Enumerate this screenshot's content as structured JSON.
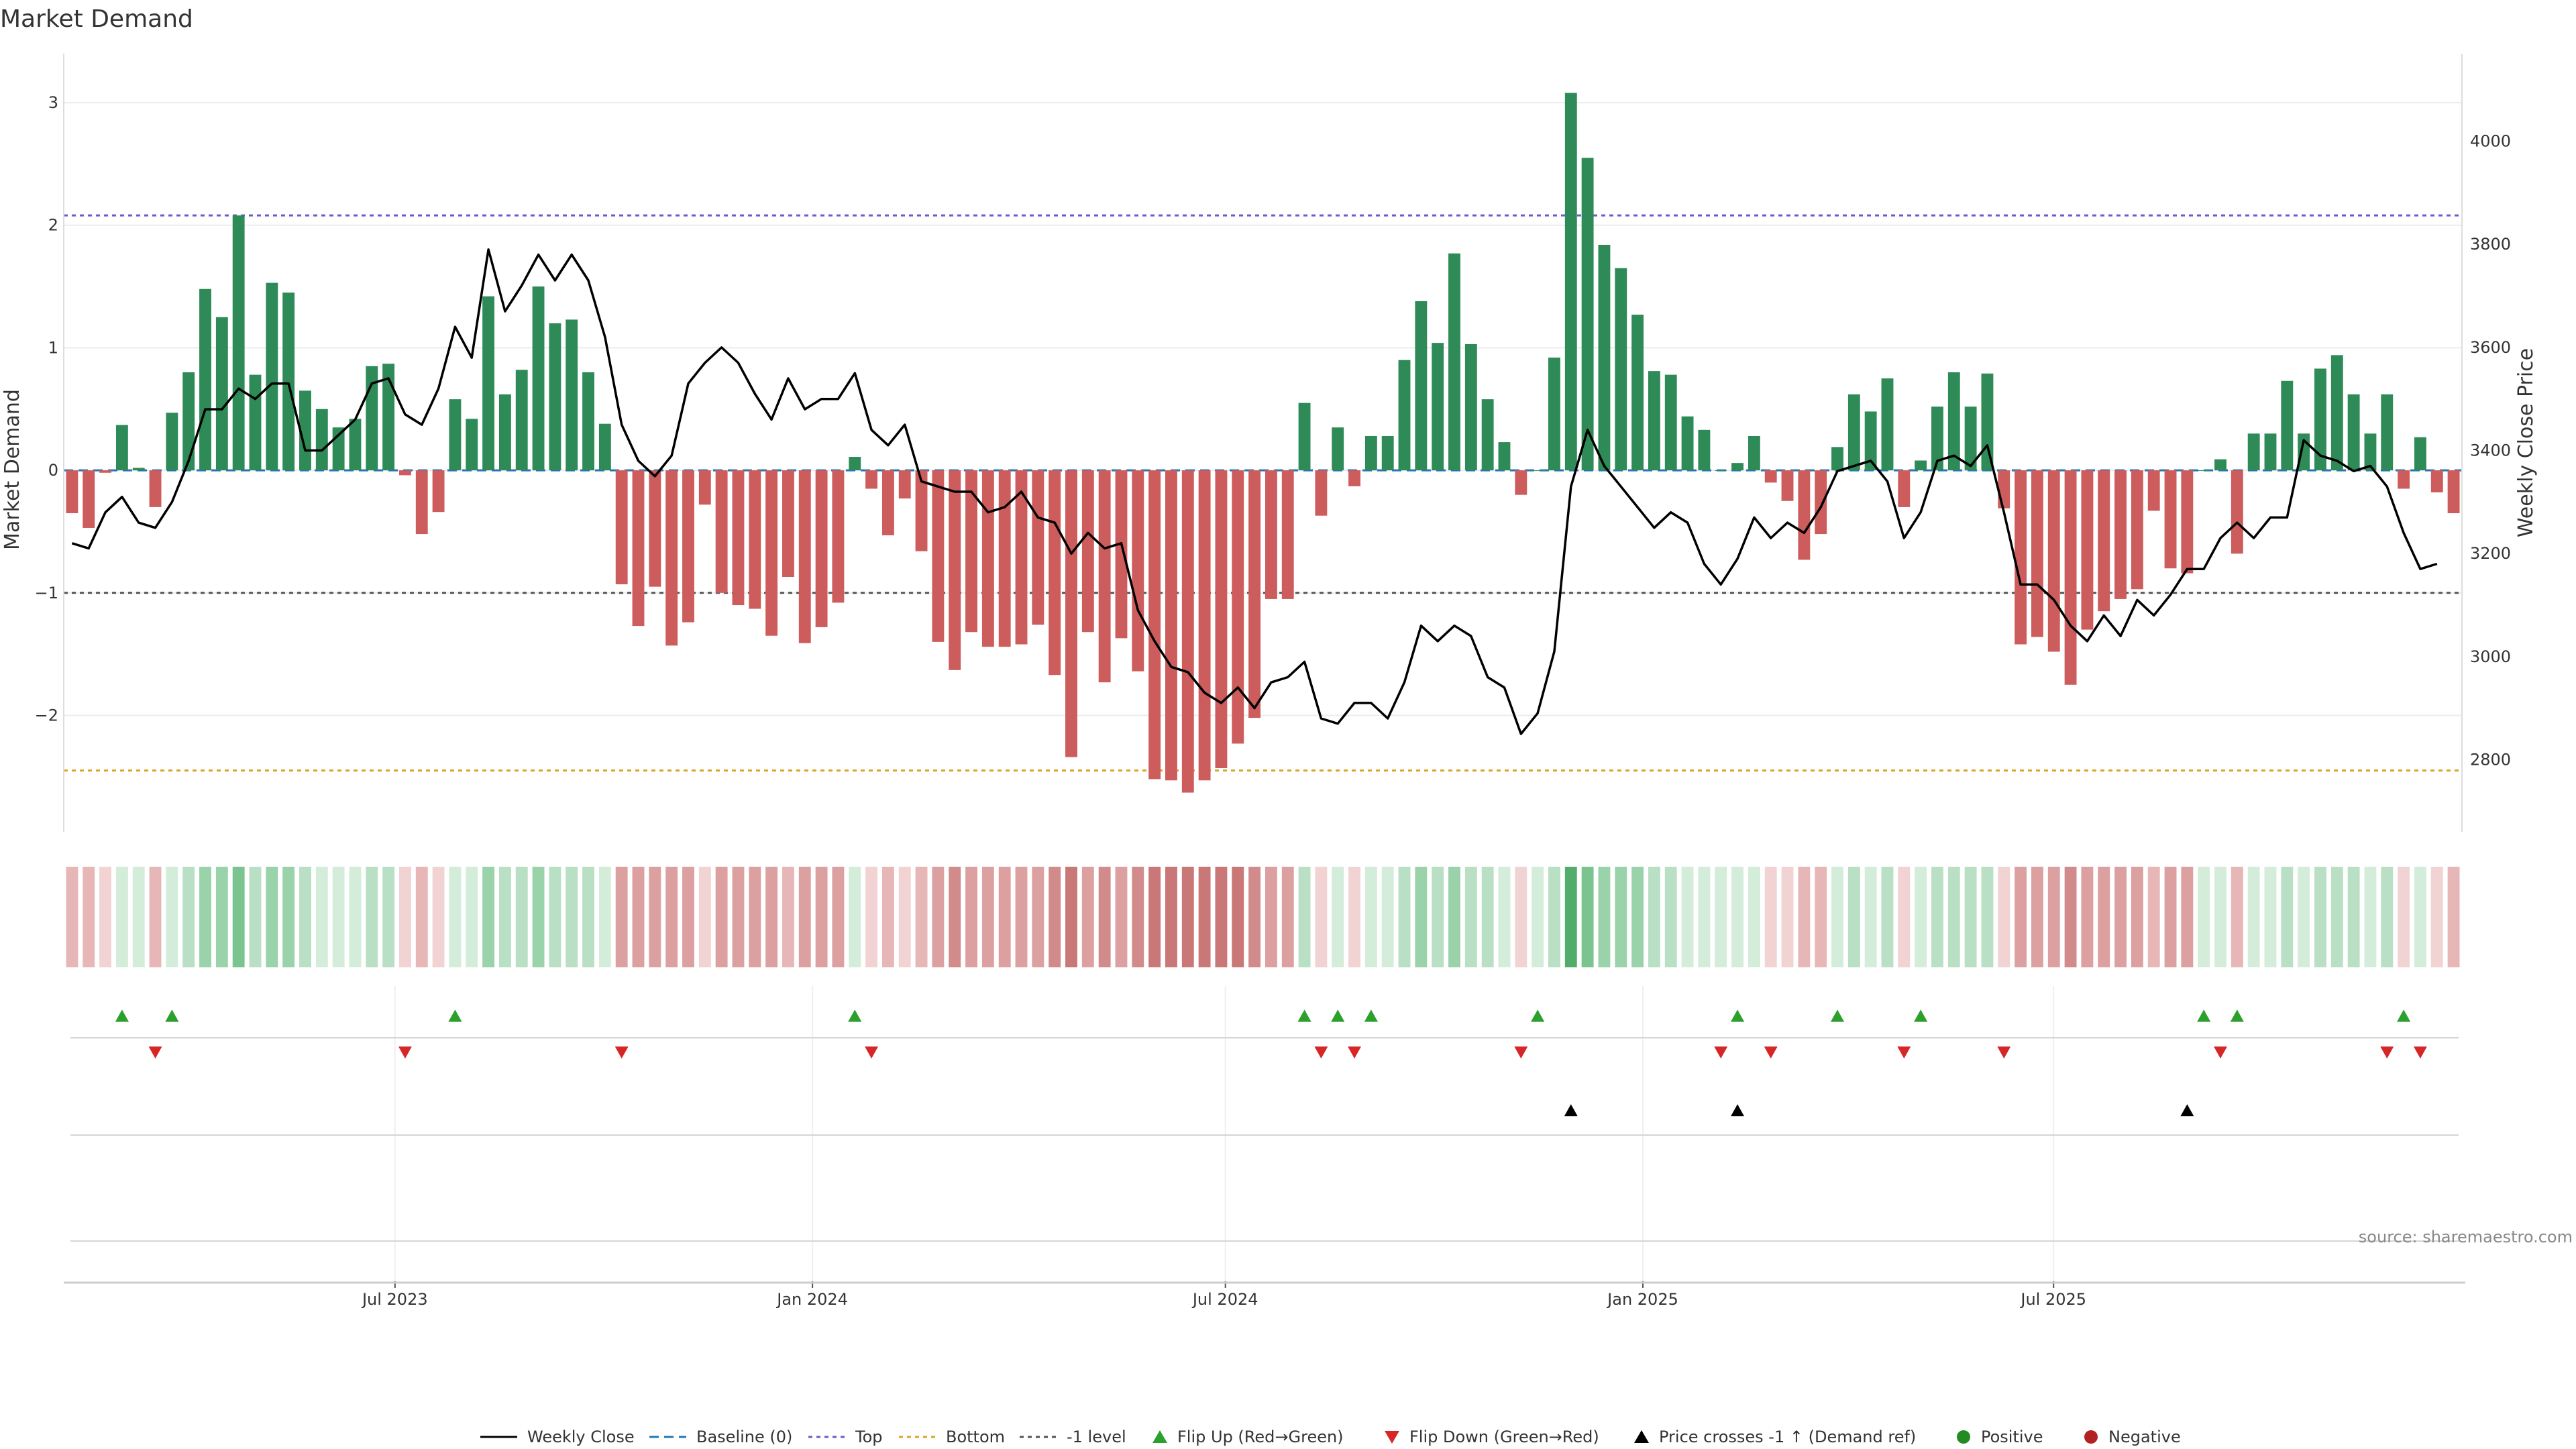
{
  "chart_data": {
    "type": "bar",
    "title": "Market Demand",
    "source_note": "source: sharemaestro.com",
    "ylabel_left": "Market Demand",
    "ylabel_right": "Weekly Close Price",
    "ylim_left": [
      -2.95,
      3.4
    ],
    "ylim_right": [
      2660,
      4170
    ],
    "yticks_left": [
      -2,
      -1,
      0,
      1,
      2,
      3
    ],
    "yticks_left_labels": [
      "−2",
      "−1",
      "0",
      "1",
      "2",
      "3"
    ],
    "yticks_right": [
      2800,
      3000,
      3200,
      3400,
      3600,
      3800,
      4000
    ],
    "yticks_right_labels": [
      "2800",
      "3000",
      "3200",
      "3400",
      "3600",
      "3800",
      "4000"
    ],
    "x_start": "2023-02-05",
    "x_end": "2025-12-28",
    "x_ticks": [
      "2023-07-01",
      "2024-01-01",
      "2024-07-01",
      "2025-01-01",
      "2025-07-01"
    ],
    "x_tick_labels": [
      "Jul 2023",
      "Jan 2024",
      "Jul 2024",
      "Jan 2025",
      "Jul 2025"
    ],
    "reference_lines": {
      "baseline": 0,
      "top": 2.08,
      "bottom": -2.45,
      "minus_one": -1
    },
    "colors": {
      "positive": "#2e8b57",
      "negative": "#cd5c5c",
      "close": "#000000",
      "top": "#6a5acd",
      "bottom": "#daa520",
      "minus_one": "#555555",
      "baseline": "#1f77b4",
      "flip_up": "#2ca02c",
      "flip_down": "#d62728",
      "cross": "#000000",
      "positive_dot": "#228b22",
      "negative_dot": "#b22222"
    },
    "demand": [
      -0.35,
      -0.47,
      -0.02,
      0.37,
      0.02,
      -0.3,
      0.47,
      0.8,
      1.48,
      1.25,
      2.08,
      0.78,
      1.53,
      1.45,
      0.65,
      0.5,
      0.35,
      0.42,
      0.85,
      0.87,
      -0.04,
      -0.52,
      -0.34,
      0.58,
      0.42,
      1.42,
      0.62,
      0.82,
      1.5,
      1.2,
      1.23,
      0.8,
      0.38,
      -0.93,
      -1.27,
      -0.95,
      -1.43,
      -1.24,
      -0.28,
      -1.0,
      -1.1,
      -1.13,
      -1.35,
      -0.87,
      -1.41,
      -1.28,
      -1.08,
      0.11,
      -0.15,
      -0.53,
      -0.23,
      -0.66,
      -1.4,
      -1.63,
      -1.32,
      -1.44,
      -1.44,
      -1.42,
      -1.26,
      -1.67,
      -2.34,
      -1.32,
      -1.73,
      -1.37,
      -1.64,
      -2.52,
      -2.53,
      -2.63,
      -2.53,
      -2.43,
      -2.23,
      -2.02,
      -1.05,
      -1.05,
      0.55,
      -0.37,
      0.35,
      -0.13,
      0.28,
      0.28,
      0.9,
      1.38,
      1.04,
      1.77,
      1.03,
      0.58,
      0.23,
      -0.2,
      0.0,
      0.92,
      3.08,
      2.55,
      1.84,
      1.65,
      1.27,
      0.81,
      0.78,
      0.44,
      0.33,
      0.0,
      0.06,
      0.28,
      -0.1,
      -0.25,
      -0.73,
      -0.52,
      0.19,
      0.62,
      0.48,
      0.75,
      -0.3,
      0.08,
      0.52,
      0.8,
      0.52,
      0.79,
      -0.31,
      -1.42,
      -1.36,
      -1.48,
      -1.75,
      -1.3,
      -1.15,
      -1.05,
      -0.97,
      -0.33,
      -0.8,
      -0.84,
      0.0,
      0.09,
      -0.68,
      0.3,
      0.3,
      0.73,
      0.3,
      0.83,
      0.94,
      0.62,
      0.3,
      0.62,
      -0.15,
      0.27,
      -0.18,
      -0.35
    ],
    "close": [
      3220,
      3210,
      3280,
      3310,
      3260,
      3250,
      3300,
      3380,
      3480,
      3480,
      3520,
      3500,
      3530,
      3530,
      3400,
      3400,
      3430,
      3460,
      3530,
      3540,
      3470,
      3450,
      3520,
      3640,
      3580,
      3790,
      3670,
      3720,
      3780,
      3730,
      3780,
      3730,
      3620,
      3450,
      3380,
      3350,
      3390,
      3530,
      3570,
      3600,
      3570,
      3510,
      3460,
      3540,
      3480,
      3500,
      3500,
      3550,
      3440,
      3410,
      3450,
      3340,
      3330,
      3320,
      3320,
      3280,
      3290,
      3320,
      3270,
      3260,
      3200,
      3240,
      3210,
      3220,
      3090,
      3030,
      2980,
      2970,
      2930,
      2910,
      2940,
      2900,
      2950,
      2960,
      2990,
      2880,
      2870,
      2910,
      2910,
      2880,
      2950,
      3060,
      3030,
      3060,
      3040,
      2960,
      2940,
      2850,
      2890,
      3010,
      3330,
      3440,
      3370,
      3330,
      3290,
      3250,
      3280,
      3260,
      3180,
      3140,
      3190,
      3270,
      3230,
      3260,
      3240,
      3290,
      3360,
      3370,
      3380,
      3340,
      3230,
      3280,
      3380,
      3390,
      3370,
      3410,
      3280,
      3140,
      3140,
      3110,
      3060,
      3030,
      3080,
      3040,
      3110,
      3080,
      3120,
      3170,
      3170,
      3230,
      3260,
      3230,
      3270,
      3270,
      3420,
      3390,
      3380,
      3360,
      3370,
      3330,
      3240,
      3170,
      3180
    ],
    "heat": [
      -2,
      -2,
      -1,
      1,
      1,
      -2,
      1,
      2,
      3,
      3,
      4,
      2,
      3,
      3,
      2,
      1,
      1,
      1,
      2,
      2,
      -1,
      -2,
      -1,
      1,
      1,
      3,
      2,
      2,
      3,
      2,
      2,
      2,
      1,
      -3,
      -3,
      -3,
      -3,
      -3,
      -1,
      -3,
      -3,
      -3,
      -3,
      -2,
      -3,
      -3,
      -3,
      1,
      -1,
      -2,
      -1,
      -2,
      -3,
      -4,
      -3,
      -3,
      -3,
      -3,
      -3,
      -4,
      -5,
      -3,
      -4,
      -3,
      -4,
      -5,
      -5,
      -5,
      -5,
      -5,
      -5,
      -4,
      -3,
      -3,
      2,
      -1,
      1,
      -1,
      1,
      1,
      2,
      3,
      2,
      3,
      2,
      2,
      1,
      -1,
      1,
      2,
      5,
      4,
      3,
      3,
      3,
      2,
      2,
      1,
      1,
      1,
      1,
      1,
      -1,
      -1,
      -2,
      -2,
      1,
      2,
      1,
      2,
      -1,
      1,
      2,
      2,
      2,
      2,
      -1,
      -3,
      -3,
      -3,
      -4,
      -3,
      -3,
      -3,
      -3,
      -2,
      -3,
      -3,
      1,
      1,
      -2,
      1,
      1,
      2,
      1,
      2,
      2,
      2,
      1,
      2,
      -1,
      1,
      -1,
      -2
    ],
    "flip_up": [
      3,
      6,
      23,
      47,
      74,
      76,
      78,
      88,
      100,
      106,
      111,
      128,
      130,
      140
    ],
    "flip_down": [
      5,
      20,
      33,
      48,
      75,
      77,
      87,
      99,
      102,
      110,
      116,
      129,
      139,
      141
    ],
    "price_cross_up": [
      90,
      100,
      127
    ],
    "legend": [
      "Weekly Close",
      "Baseline (0)",
      "Top",
      "Bottom",
      "-1 level",
      "Flip Up (Red→Green)",
      "Flip Down (Green→Red)",
      "Price crosses -1 ↑ (Demand ref)",
      "Positive",
      "Negative"
    ]
  }
}
